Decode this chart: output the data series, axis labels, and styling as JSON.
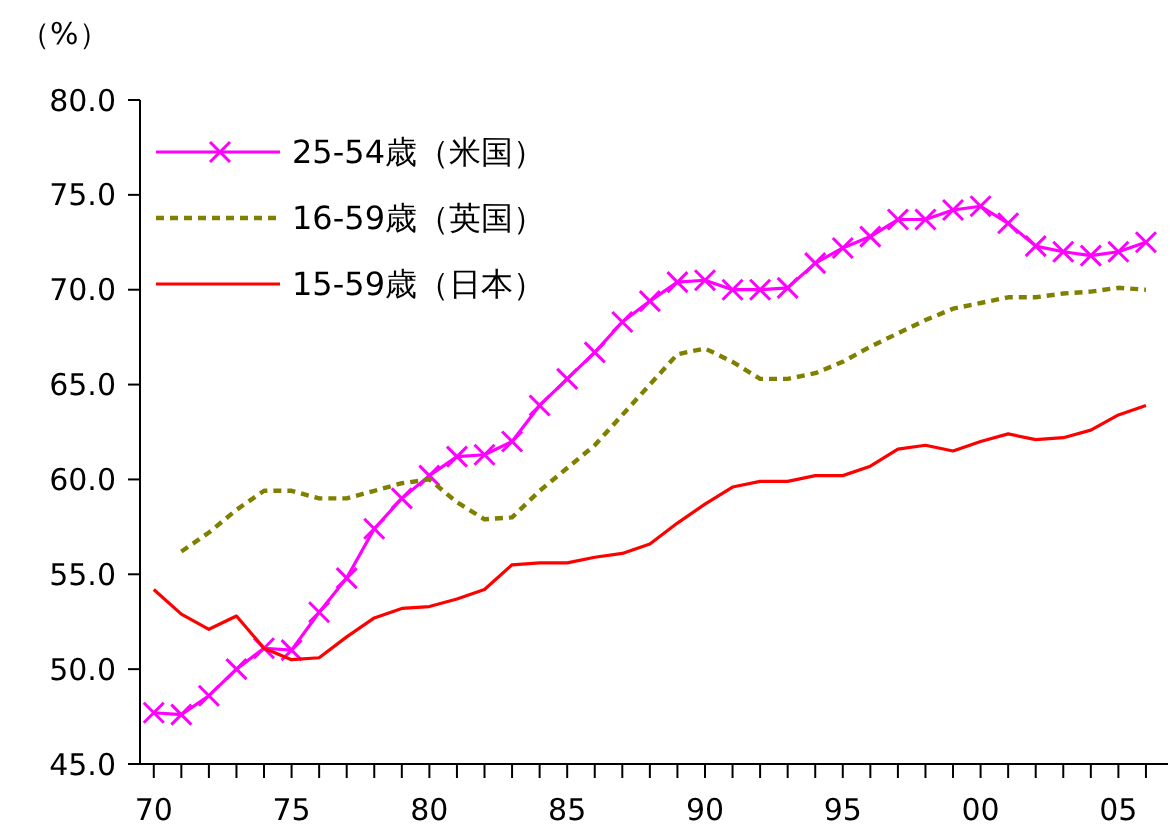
{
  "chart_data": {
    "type": "line",
    "ylabel": "（%）",
    "x": [
      1970,
      1971,
      1972,
      1973,
      1974,
      1975,
      1976,
      1977,
      1978,
      1979,
      1980,
      1981,
      1982,
      1983,
      1984,
      1985,
      1986,
      1987,
      1988,
      1989,
      1990,
      1991,
      1992,
      1993,
      1994,
      1995,
      1996,
      1997,
      1998,
      1999,
      2000,
      2001,
      2002,
      2003,
      2004,
      2005,
      2006
    ],
    "series": [
      {
        "name": "25-54歳（米国）",
        "color": "#ff00ff",
        "marker": "cross",
        "line_style": "solid",
        "values": [
          47.7,
          47.6,
          48.6,
          50.0,
          51.1,
          51.0,
          53.0,
          54.8,
          57.4,
          59.0,
          60.2,
          61.2,
          61.3,
          62.0,
          63.9,
          65.3,
          66.7,
          68.3,
          69.4,
          70.4,
          70.5,
          70.0,
          70.0,
          70.1,
          71.4,
          72.2,
          72.8,
          73.7,
          73.7,
          74.2,
          74.4,
          73.5,
          72.3,
          72.0,
          71.8,
          72.0,
          72.5
        ]
      },
      {
        "name": "16-59歳（英国）",
        "color": "#808000",
        "marker": "none",
        "line_style": "dashed",
        "values": [
          null,
          56.2,
          57.2,
          58.4,
          59.4,
          59.4,
          59.0,
          59.0,
          59.4,
          59.8,
          60.0,
          58.8,
          57.9,
          58.0,
          59.4,
          60.6,
          61.8,
          63.4,
          65.0,
          66.6,
          66.9,
          66.2,
          65.3,
          65.3,
          65.6,
          66.2,
          67.0,
          67.7,
          68.4,
          69.0,
          69.3,
          69.6,
          69.6,
          69.8,
          69.9,
          70.1,
          70.0
        ]
      },
      {
        "name": "15-59歳（日本）",
        "color": "#ff0000",
        "marker": "none",
        "line_style": "solid",
        "values": [
          54.2,
          52.9,
          52.1,
          52.8,
          51.1,
          50.5,
          50.6,
          51.7,
          52.7,
          53.2,
          53.3,
          53.7,
          54.2,
          55.5,
          55.6,
          55.6,
          55.9,
          56.1,
          56.6,
          57.7,
          58.7,
          59.6,
          59.9,
          59.9,
          60.2,
          60.2,
          60.7,
          61.6,
          61.8,
          61.5,
          62.0,
          62.4,
          62.1,
          62.2,
          62.6,
          63.4,
          63.9
        ]
      }
    ],
    "xlim": [
      1969.5,
      2006.8
    ],
    "xticks": [
      {
        "value": 1970,
        "label": "70"
      },
      {
        "value": 1971,
        "label": null
      },
      {
        "value": 1972,
        "label": null
      },
      {
        "value": 1973,
        "label": null
      },
      {
        "value": 1974,
        "label": null
      },
      {
        "value": 1975,
        "label": "75"
      },
      {
        "value": 1976,
        "label": null
      },
      {
        "value": 1977,
        "label": null
      },
      {
        "value": 1978,
        "label": null
      },
      {
        "value": 1979,
        "label": null
      },
      {
        "value": 1980,
        "label": "80"
      },
      {
        "value": 1981,
        "label": null
      },
      {
        "value": 1982,
        "label": null
      },
      {
        "value": 1983,
        "label": null
      },
      {
        "value": 1984,
        "label": null
      },
      {
        "value": 1985,
        "label": "85"
      },
      {
        "value": 1986,
        "label": null
      },
      {
        "value": 1987,
        "label": null
      },
      {
        "value": 1988,
        "label": null
      },
      {
        "value": 1989,
        "label": null
      },
      {
        "value": 1990,
        "label": "90"
      },
      {
        "value": 1991,
        "label": null
      },
      {
        "value": 1992,
        "label": null
      },
      {
        "value": 1993,
        "label": null
      },
      {
        "value": 1994,
        "label": null
      },
      {
        "value": 1995,
        "label": "95"
      },
      {
        "value": 1996,
        "label": null
      },
      {
        "value": 1997,
        "label": null
      },
      {
        "value": 1998,
        "label": null
      },
      {
        "value": 1999,
        "label": null
      },
      {
        "value": 2000,
        "label": "00"
      },
      {
        "value": 2001,
        "label": null
      },
      {
        "value": 2002,
        "label": null
      },
      {
        "value": 2003,
        "label": null
      },
      {
        "value": 2004,
        "label": null
      },
      {
        "value": 2005,
        "label": "05"
      },
      {
        "value": 2006,
        "label": null
      }
    ],
    "ylim": [
      45,
      80
    ],
    "yticks": [
      {
        "value": 45,
        "label": "45.0"
      },
      {
        "value": 50,
        "label": "50.0"
      },
      {
        "value": 55,
        "label": "55.0"
      },
      {
        "value": 60,
        "label": "60.0"
      },
      {
        "value": 65,
        "label": "65.0"
      },
      {
        "value": 70,
        "label": "70.0"
      },
      {
        "value": 75,
        "label": "75.0"
      },
      {
        "value": 80,
        "label": "80.0"
      }
    ],
    "grid": false,
    "legend": "top left"
  }
}
